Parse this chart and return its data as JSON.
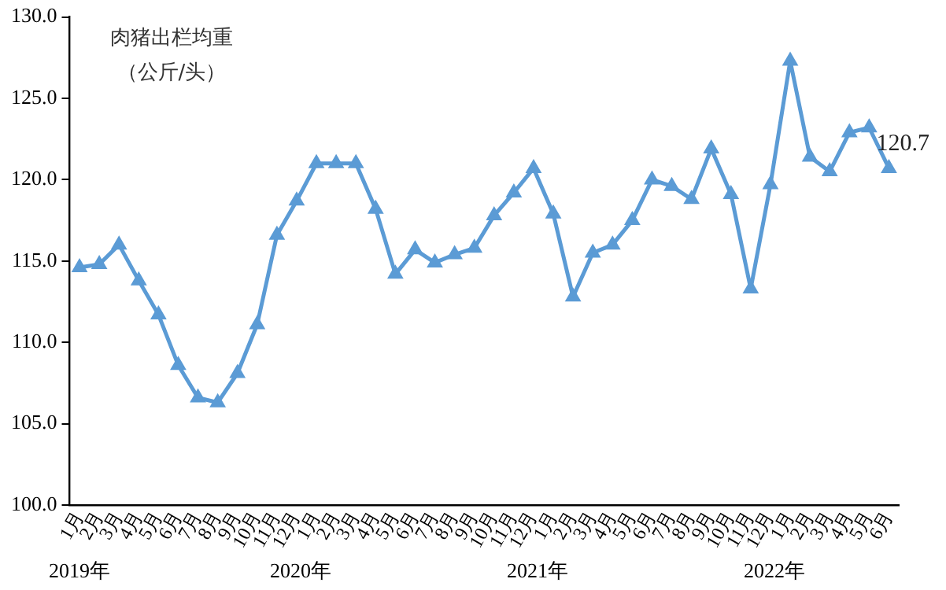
{
  "chart_data": {
    "type": "line",
    "title": "肉猪出栏均重",
    "subtitle": "（公斤/头）",
    "categories": [
      "1月",
      "2月",
      "3月",
      "4月",
      "5月",
      "6月",
      "7月",
      "8月",
      "9月",
      "10月",
      "11月",
      "12月",
      "1月",
      "2月",
      "3月",
      "4月",
      "5月",
      "6月",
      "7月",
      "8月",
      "9月",
      "10月",
      "11月",
      "12月",
      "1月",
      "2月",
      "3月",
      "4月",
      "5月",
      "6月",
      "7月",
      "8月",
      "9月",
      "10月",
      "11月",
      "12月",
      "1月",
      "2月",
      "3月",
      "4月",
      "5月",
      "6月"
    ],
    "series": [
      {
        "color": "#5b9bd5",
        "values": [
          114.6,
          114.8,
          116.0,
          113.8,
          111.7,
          108.6,
          106.6,
          106.3,
          108.1,
          111.1,
          116.6,
          118.7,
          121.0,
          121.0,
          121.0,
          118.2,
          114.2,
          115.7,
          114.9,
          115.4,
          115.8,
          117.8,
          119.2,
          120.7,
          117.9,
          112.8,
          115.5,
          116.0,
          117.5,
          120.0,
          119.6,
          118.8,
          121.9,
          119.1,
          113.3,
          119.7,
          127.3,
          121.4,
          120.5,
          122.9,
          123.2,
          120.7
        ],
        "value_labels": [
          null,
          null,
          null,
          null,
          null,
          null,
          null,
          null,
          null,
          null,
          null,
          null,
          null,
          null,
          null,
          null,
          null,
          null,
          null,
          null,
          null,
          null,
          null,
          null,
          null,
          null,
          null,
          null,
          null,
          null,
          null,
          null,
          null,
          null,
          null,
          null,
          null,
          null,
          null,
          null,
          null,
          "120.7"
        ]
      }
    ],
    "ylim": [
      100,
      130
    ],
    "yticks": [
      {
        "value": 100,
        "label": "100.0"
      },
      {
        "value": 105,
        "label": "105.0"
      },
      {
        "value": 110,
        "label": "110.0"
      },
      {
        "value": 115,
        "label": "115.0"
      },
      {
        "value": 120,
        "label": "120.0"
      },
      {
        "value": 125,
        "label": "125.0"
      },
      {
        "value": 130,
        "label": "130.0"
      }
    ],
    "annotations": [
      "2019年",
      "2020年",
      "2021年",
      "2022年"
    ],
    "grid": false,
    "legend": false,
    "marker": "triangle",
    "line_style": "solid"
  }
}
